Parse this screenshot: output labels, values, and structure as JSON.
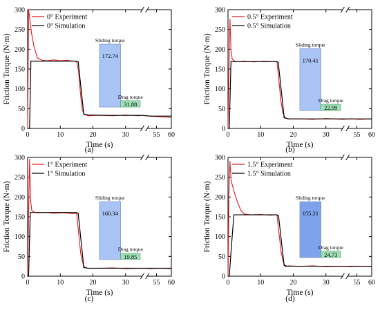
{
  "chart_data": [
    {
      "panel": "(a)",
      "type": "line",
      "xlabel": "Time (s)",
      "ylabel": "Friction Torque (N·m)",
      "xlim": [
        0,
        60
      ],
      "axis_break": [
        35,
        52
      ],
      "xticks": [
        "0",
        "10",
        "20",
        "30",
        "55",
        "60"
      ],
      "yticks": [
        "0",
        "50",
        "100",
        "150",
        "200",
        "250",
        "300"
      ],
      "ylim": [
        0,
        300
      ],
      "series": [
        {
          "name": "0° Experiment",
          "color": "#e31a1c",
          "x": [
            0,
            0.3,
            0.7,
            1.2,
            2,
            3,
            4.5,
            6,
            8,
            10,
            12,
            14,
            15,
            15.6,
            16,
            16.4,
            16.8,
            17.4,
            18.5,
            22,
            26,
            30,
            34,
            35,
            53,
            55,
            58,
            60
          ],
          "y": [
            0,
            300,
            275,
            240,
            205,
            178,
            172,
            171,
            173,
            171,
            172,
            170,
            169,
            145,
            105,
            70,
            45,
            36,
            32,
            33,
            32,
            34,
            32,
            33,
            31,
            30,
            29,
            28
          ]
        },
        {
          "name": "0° Simulation",
          "color": "#000000",
          "x": [
            0,
            0.6,
            1.0,
            5,
            10,
            15,
            15.5,
            17.2,
            18.5,
            25,
            30,
            35,
            53,
            60
          ],
          "y": [
            0,
            0,
            170,
            170,
            170,
            170,
            168,
            36,
            34,
            33,
            33,
            33,
            31,
            31
          ]
        }
      ],
      "legend": "top-left",
      "annotations": {
        "sliding": {
          "label": "Sliding torque",
          "value": "172.74",
          "color": "#a9c4f5"
        },
        "drag": {
          "label": "Drag torque",
          "value": "31.88",
          "color": "#9fe0b5"
        }
      }
    },
    {
      "panel": "(b)",
      "type": "line",
      "xlabel": "Time (s)",
      "ylabel": "Friction Torque (N·m)",
      "xlim": [
        0,
        60
      ],
      "axis_break": [
        35,
        52
      ],
      "xticks": [
        "0",
        "10",
        "20",
        "30",
        "55",
        "60"
      ],
      "yticks": [
        "0",
        "50",
        "100",
        "150",
        "200",
        "250",
        "300"
      ],
      "ylim": [
        0,
        300
      ],
      "series": [
        {
          "name": "0.5° Experiment",
          "color": "#e31a1c",
          "x": [
            0,
            0.3,
            0.6,
            0.9,
            1.3,
            2,
            3,
            5,
            8,
            11,
            14,
            15,
            15.5,
            16.2,
            16.8,
            17.5,
            18.5,
            22,
            26,
            30,
            35,
            53,
            56,
            60
          ],
          "y": [
            0,
            150,
            275,
            200,
            175,
            170,
            169,
            170,
            168,
            170,
            169,
            168,
            130,
            70,
            40,
            27,
            24,
            24,
            23,
            25,
            23,
            24,
            23,
            24
          ]
        },
        {
          "name": "0.5° Simulation",
          "color": "#000000",
          "x": [
            0,
            0.4,
            0.9,
            5,
            10,
            15,
            15.4,
            17.2,
            18.5,
            25,
            30,
            35,
            53,
            60
          ],
          "y": [
            0,
            0,
            169,
            169,
            169,
            169,
            166,
            27,
            24,
            24,
            24,
            24,
            24,
            24
          ]
        }
      ],
      "legend": "top-left",
      "annotations": {
        "sliding": {
          "label": "Sliding torque",
          "value": "170.41",
          "color": "#a9c4f5"
        },
        "drag": {
          "label": "Drag torque",
          "value": "22.99",
          "color": "#9fe0b5"
        }
      }
    },
    {
      "panel": "(c)",
      "type": "line",
      "xlabel": "Time (s)",
      "ylabel": "Friction Torque (N·m)",
      "xlim": [
        0,
        60
      ],
      "axis_break": [
        35,
        52
      ],
      "xticks": [
        "0",
        "10",
        "20",
        "30",
        "55",
        "60"
      ],
      "yticks": [
        "0",
        "50",
        "100",
        "150",
        "200",
        "250",
        "300"
      ],
      "ylim": [
        0,
        300
      ],
      "series": [
        {
          "name": "1° Experiment",
          "color": "#e31a1c",
          "x": [
            0,
            0.3,
            0.6,
            0.9,
            1.3,
            2,
            3,
            5,
            8,
            11,
            14,
            15,
            15.6,
            16.3,
            17,
            17.6,
            18.5,
            22,
            26,
            30,
            35,
            53,
            56,
            60
          ],
          "y": [
            0,
            160,
            295,
            190,
            165,
            162,
            160,
            161,
            159,
            160,
            158,
            159,
            110,
            55,
            30,
            21,
            20,
            20,
            21,
            19,
            20,
            19,
            20,
            19
          ]
        },
        {
          "name": "1° Simulation",
          "color": "#000000",
          "x": [
            0,
            0.3,
            0.8,
            5,
            10,
            15,
            15.5,
            17.2,
            18.5,
            25,
            30,
            35,
            53,
            60
          ],
          "y": [
            0,
            0,
            161,
            161,
            161,
            161,
            158,
            22,
            20,
            20,
            20,
            20,
            20,
            20
          ]
        }
      ],
      "legend": "top-left",
      "annotations": {
        "sliding": {
          "label": "Sliding torque",
          "value": "160.34",
          "color": "#a9c4f5"
        },
        "drag": {
          "label": "Drag torque",
          "value": "19.85",
          "color": "#9fe0b5"
        }
      }
    },
    {
      "panel": "(d)",
      "type": "line",
      "xlabel": "Time (s)",
      "ylabel": "Friction Torque (N·m)",
      "xlim": [
        0,
        60
      ],
      "axis_break": [
        35,
        52
      ],
      "xticks": [
        "0",
        "10",
        "20",
        "30",
        "55",
        "60"
      ],
      "yticks": [
        "0",
        "50",
        "100",
        "150",
        "200",
        "250",
        "300"
      ],
      "ylim": [
        0,
        300
      ],
      "series": [
        {
          "name": "1.5° Experiment",
          "color": "#e31a1c",
          "x": [
            0,
            0.3,
            0.6,
            1.0,
            1.5,
            2,
            3,
            4,
            5,
            7,
            10,
            13,
            15,
            15.6,
            16.3,
            17,
            17.6,
            18.5,
            22,
            26,
            30,
            35,
            53,
            56,
            60
          ],
          "y": [
            0,
            210,
            290,
            240,
            225,
            210,
            185,
            165,
            157,
            155,
            156,
            154,
            155,
            110,
            60,
            35,
            24,
            26,
            25,
            26,
            24,
            25,
            24,
            25,
            24
          ]
        },
        {
          "name": "1.5° Simulation",
          "color": "#000000",
          "x": [
            0,
            0.4,
            1.0,
            1.8,
            5,
            10,
            15,
            15.5,
            17.2,
            18.5,
            25,
            30,
            35,
            53,
            60
          ],
          "y": [
            0,
            0,
            70,
            155,
            155,
            155,
            155,
            152,
            27,
            25,
            25,
            25,
            25,
            25,
            25
          ]
        }
      ],
      "legend": "top-left",
      "annotations": {
        "sliding": {
          "label": "Sliding torque",
          "value": "155.21",
          "color": "#7fa2ec"
        },
        "drag": {
          "label": "Drag torque",
          "value": "24.73",
          "color": "#9fe0b5"
        }
      }
    }
  ]
}
